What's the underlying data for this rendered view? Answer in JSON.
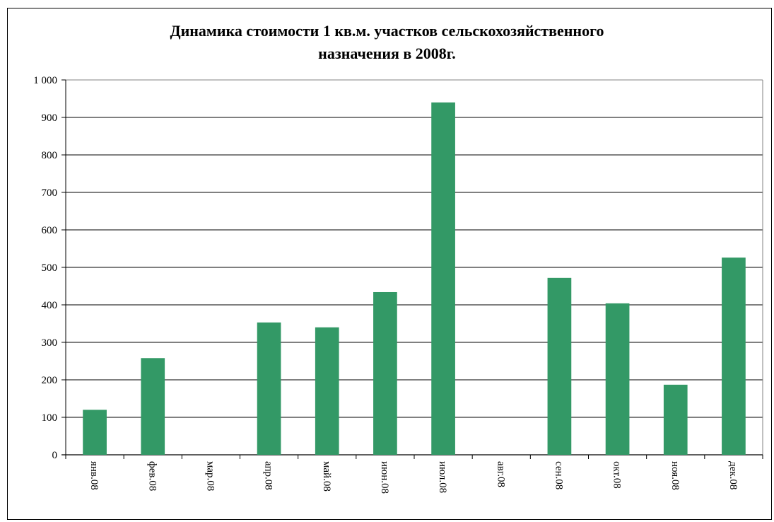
{
  "chart_data": {
    "type": "bar",
    "title_lines": [
      "Динамика стоимости 1 кв.м. участков сельскохозяйственного",
      "назначения в 2008г."
    ],
    "xlabel": "",
    "ylabel": "",
    "categories": [
      "янв.08",
      "фев.08",
      "мар.08",
      "апр.08",
      "май.08",
      "июн.08",
      "июл.08",
      "авг.08",
      "сен.08",
      "окт.08",
      "ноя.08",
      "дек.08"
    ],
    "values": [
      120,
      258,
      0,
      353,
      340,
      434,
      940,
      0,
      472,
      404,
      187,
      526
    ],
    "ylim": [
      0,
      1000
    ],
    "y_ticks": [
      0,
      100,
      200,
      300,
      400,
      500,
      600,
      700,
      800,
      900,
      1000
    ],
    "y_tick_labels": [
      "0",
      "100",
      "200",
      "300",
      "400",
      "500",
      "600",
      "700",
      "800",
      "900",
      "1 000"
    ],
    "grid": true,
    "legend": "none",
    "bar_color": "#339966"
  }
}
